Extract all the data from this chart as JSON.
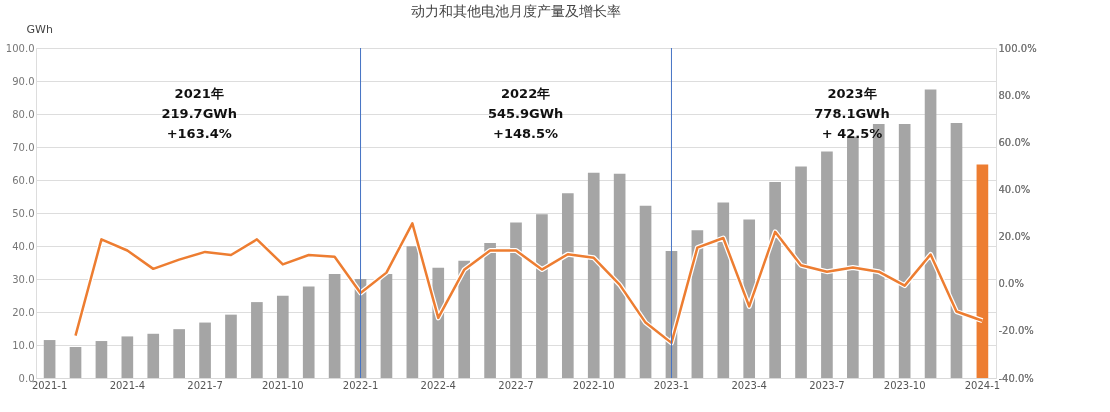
{
  "chart_data": {
    "type": "bar",
    "title": "动力和其他电池月度产量及增长率",
    "ylabel": "GWh",
    "categories": [
      "2021-1",
      null,
      null,
      "2021-4",
      null,
      null,
      "2021-7",
      null,
      null,
      "2021-10",
      null,
      null,
      "2022-1",
      null,
      null,
      "2022-4",
      null,
      null,
      "2022-7",
      null,
      null,
      "2022-10",
      null,
      null,
      "2023-1",
      null,
      null,
      "2023-4",
      null,
      null,
      "2023-7",
      null,
      null,
      "2023-10",
      null,
      null,
      "2024-1"
    ],
    "series": [
      {
        "colors": [
          "#a5a5a5",
          "#a5a5a5",
          "#a5a5a5",
          "#a5a5a5",
          "#a5a5a5",
          "#a5a5a5",
          "#a5a5a5",
          "#a5a5a5",
          "#a5a5a5",
          "#a5a5a5",
          "#a5a5a5",
          "#a5a5a5",
          "#a5a5a5",
          "#a5a5a5",
          "#a5a5a5",
          "#a5a5a5",
          "#a5a5a5",
          "#a5a5a5",
          "#a5a5a5",
          "#a5a5a5",
          "#a5a5a5",
          "#a5a5a5",
          "#a5a5a5",
          "#a5a5a5",
          "#a5a5a5",
          "#a5a5a5",
          "#a5a5a5",
          "#a5a5a5",
          "#a5a5a5",
          "#a5a5a5",
          "#a5a5a5",
          "#a5a5a5",
          "#a5a5a5",
          "#a5a5a5",
          "#a5a5a5",
          "#a5a5a5",
          "#ed7d31"
        ],
        "values": [
          11.5,
          9.4,
          11.2,
          12.6,
          13.4,
          14.8,
          16.8,
          19.2,
          23.0,
          24.9,
          27.7,
          31.5,
          30.0,
          31.5,
          39.9,
          33.4,
          35.5,
          40.9,
          47.1,
          49.6,
          56.0,
          62.2,
          61.9,
          52.2,
          38.5,
          44.8,
          53.2,
          48.0,
          59.4,
          64.1,
          68.6,
          73.1,
          77.0,
          77.0,
          87.4,
          77.3,
          64.7
        ]
      },
      {
        "type": "line",
        "axis": "y2",
        "color": "#ed7d31",
        "values": [
          null,
          -22.0,
          18.8,
          14.1,
          6.3,
          10.2,
          13.5,
          12.2,
          18.8,
          8.2,
          12.2,
          11.4,
          -3.9,
          4.7,
          25.6,
          -14.5,
          5.9,
          14.1,
          14.1,
          6.0,
          12.5,
          11.0,
          -0.4,
          -16.5,
          -25.1,
          15.3,
          19.4,
          -9.6,
          22.0,
          7.8,
          5.1,
          6.9,
          5.1,
          -0.8,
          12.4,
          -11.8,
          -15.7
        ]
      }
    ],
    "ylim": [
      0,
      100
    ],
    "yticks": [
      {
        "value": 0,
        "label": "0.0"
      },
      {
        "value": 10,
        "label": "10.0"
      },
      {
        "value": 20,
        "label": "20.0"
      },
      {
        "value": 30,
        "label": "30.0"
      },
      {
        "value": 40,
        "label": "40.0"
      },
      {
        "value": 50,
        "label": "50.0"
      },
      {
        "value": 60,
        "label": "60.0"
      },
      {
        "value": 70,
        "label": "70.0"
      },
      {
        "value": 80,
        "label": "80.0"
      },
      {
        "value": 90,
        "label": "90.0"
      },
      {
        "value": 100,
        "label": "100.0"
      }
    ],
    "y2lim": [
      -40,
      100
    ],
    "y2ticks": [
      {
        "value": -40,
        "label": "-40.0%"
      },
      {
        "value": -20,
        "label": "-20.0%"
      },
      {
        "value": 0,
        "label": "0.0%"
      },
      {
        "value": 20,
        "label": "20.0%"
      },
      {
        "value": 40,
        "label": "40.0%"
      },
      {
        "value": 60,
        "label": "60.0%"
      },
      {
        "value": 80,
        "label": "80.0%"
      },
      {
        "value": 100,
        "label": "100.0%"
      }
    ],
    "ref_lines": [
      {
        "axis": "x",
        "value": "2022-1",
        "color": "#4472c4"
      },
      {
        "axis": "x",
        "value": "2023-1",
        "color": "#4472c4"
      }
    ],
    "annotations": [
      "2021年\n219.7GWh\n+163.4%",
      "2022年\n545.9GWh\n+148.5%",
      "2023年\n778.1GWh\n+ 42.5%"
    ],
    "grid": "y",
    "legend": false,
    "marker": "none",
    "line_style": "solid"
  }
}
